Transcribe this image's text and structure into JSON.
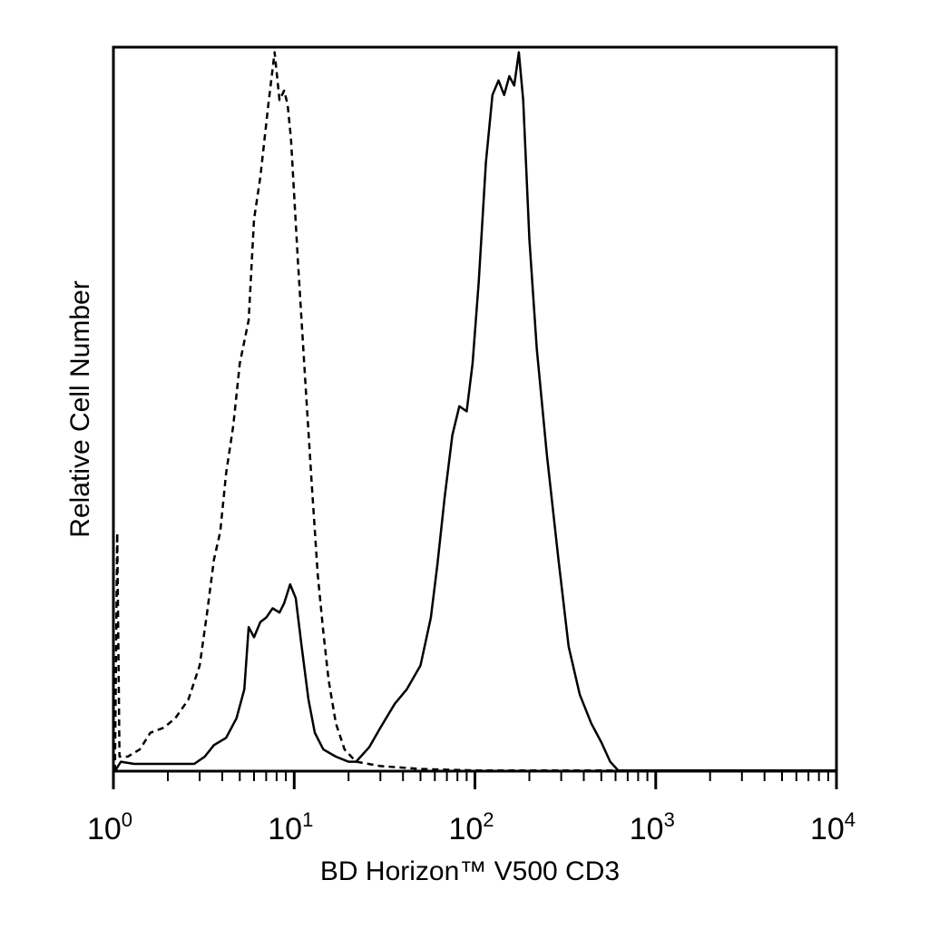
{
  "chart_data": {
    "type": "line",
    "x_scale": "log",
    "xlim": [
      1,
      10000
    ],
    "ylim": [
      0,
      100
    ],
    "xlabel": "BD Horizon™ V500 CD3",
    "ylabel": "Relative Cell Number",
    "x_ticks": [
      {
        "base": "10",
        "exp": "0",
        "value": 1
      },
      {
        "base": "10",
        "exp": "1",
        "value": 10
      },
      {
        "base": "10",
        "exp": "2",
        "value": 100
      },
      {
        "base": "10",
        "exp": "3",
        "value": 1000
      },
      {
        "base": "10",
        "exp": "4",
        "value": 10000
      }
    ],
    "grid": false,
    "series": [
      {
        "style": "dashed",
        "color": "#000000",
        "points": [
          [
            1.02,
            0
          ],
          [
            1.05,
            32.9
          ],
          [
            1.08,
            2.0
          ],
          [
            1.2,
            2.0
          ],
          [
            1.4,
            3.0
          ],
          [
            1.6,
            5.3
          ],
          [
            1.9,
            6.0
          ],
          [
            2.2,
            7.3
          ],
          [
            2.6,
            9.9
          ],
          [
            3.0,
            14.6
          ],
          [
            3.3,
            21.9
          ],
          [
            3.6,
            29.2
          ],
          [
            3.9,
            33.1
          ],
          [
            4.2,
            41.1
          ],
          [
            4.6,
            47.7
          ],
          [
            5.0,
            56.3
          ],
          [
            5.6,
            62.3
          ],
          [
            6.0,
            76.2
          ],
          [
            6.5,
            82.1
          ],
          [
            7.2,
            92.1
          ],
          [
            7.8,
            99.3
          ],
          [
            8.3,
            92.7
          ],
          [
            8.8,
            94.0
          ],
          [
            9.2,
            92.1
          ],
          [
            9.6,
            87.4
          ],
          [
            10.5,
            70.2
          ],
          [
            11.5,
            54.3
          ],
          [
            12.5,
            39.7
          ],
          [
            13.5,
            27.2
          ],
          [
            14.5,
            19.2
          ],
          [
            15.5,
            12.6
          ],
          [
            17.0,
            6.6
          ],
          [
            19.0,
            3.0
          ],
          [
            22.0,
            1.3
          ],
          [
            30.0,
            0.7
          ],
          [
            50.0,
            0.3
          ],
          [
            100.0,
            0.1
          ],
          [
            10000.0,
            0.1
          ]
        ]
      },
      {
        "style": "solid",
        "color": "#000000",
        "points": [
          [
            1.02,
            0
          ],
          [
            1.1,
            1.3
          ],
          [
            1.3,
            1.0
          ],
          [
            2.0,
            1.0
          ],
          [
            2.8,
            1.0
          ],
          [
            3.2,
            2.0
          ],
          [
            3.6,
            3.6
          ],
          [
            4.2,
            4.6
          ],
          [
            4.8,
            7.3
          ],
          [
            5.3,
            11.3
          ],
          [
            5.6,
            19.9
          ],
          [
            6.0,
            18.5
          ],
          [
            6.5,
            20.6
          ],
          [
            7.0,
            21.2
          ],
          [
            7.6,
            22.5
          ],
          [
            8.3,
            21.9
          ],
          [
            8.8,
            23.2
          ],
          [
            9.5,
            25.8
          ],
          [
            10.2,
            23.9
          ],
          [
            11.0,
            17.2
          ],
          [
            12.0,
            9.9
          ],
          [
            13.0,
            5.3
          ],
          [
            14.5,
            3.0
          ],
          [
            17.0,
            2.0
          ],
          [
            20.0,
            1.3
          ],
          [
            22.0,
            1.3
          ],
          [
            26.0,
            3.3
          ],
          [
            30.0,
            6.0
          ],
          [
            36.0,
            9.3
          ],
          [
            42.0,
            11.3
          ],
          [
            50.0,
            14.6
          ],
          [
            57.0,
            21.2
          ],
          [
            62.0,
            28.5
          ],
          [
            68.0,
            37.8
          ],
          [
            75.0,
            46.4
          ],
          [
            82.0,
            50.4
          ],
          [
            90.0,
            49.7
          ],
          [
            97.0,
            56.3
          ],
          [
            105.0,
            67.6
          ],
          [
            115.0,
            84.1
          ],
          [
            125.0,
            93.4
          ],
          [
            135.0,
            95.4
          ],
          [
            145.0,
            93.4
          ],
          [
            155.0,
            96.0
          ],
          [
            165.0,
            94.7
          ],
          [
            175.0,
            99.3
          ],
          [
            185.0,
            92.7
          ],
          [
            200.0,
            73.5
          ],
          [
            220.0,
            58.3
          ],
          [
            250.0,
            43.7
          ],
          [
            290.0,
            29.2
          ],
          [
            330.0,
            17.2
          ],
          [
            380.0,
            10.6
          ],
          [
            440.0,
            6.6
          ],
          [
            500.0,
            4.0
          ],
          [
            560.0,
            1.3
          ],
          [
            620.0,
            0.1
          ],
          [
            10000.0,
            0.1
          ]
        ]
      }
    ]
  }
}
